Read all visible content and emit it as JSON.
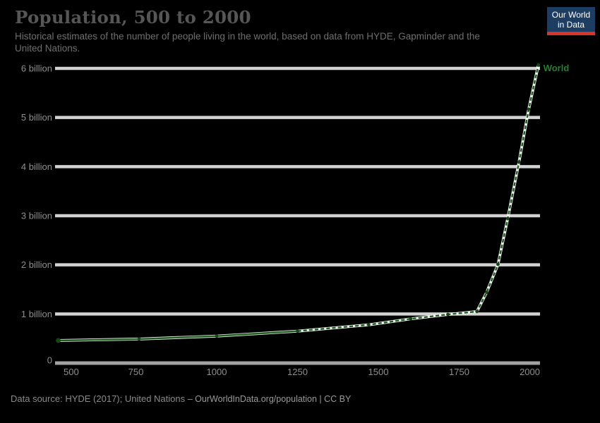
{
  "page": {
    "background": "#000000"
  },
  "header": {
    "title": "Population, 500 to 2000",
    "subtitle_lines": [
      "Historical estimates of the number of people living in the world, based on data from HYDE, Gapminder and the",
      "United Nations."
    ]
  },
  "logo": {
    "line1": "Our World",
    "line2": "in Data",
    "bg": "#1d3d63",
    "accent": "#d8352a"
  },
  "chart_data": {
    "type": "line",
    "title": "Population, 500 to 2000",
    "xlabel": "",
    "ylabel": "",
    "xlim": [
      500,
      2000
    ],
    "ylim": [
      0,
      6.3
    ],
    "grid": true,
    "grid_color": "#d2d2d2",
    "axis_color": "#a3a3a3",
    "tick_label_color": "#8f8f8f",
    "x_ticks": [
      {
        "value": 500,
        "label": "500"
      },
      {
        "value": 750,
        "label": "750"
      },
      {
        "value": 1000,
        "label": "1000"
      },
      {
        "value": 1250,
        "label": "1250"
      },
      {
        "value": 1500,
        "label": "1500"
      },
      {
        "value": 1750,
        "label": "1750"
      },
      {
        "value": 2000,
        "label": "2000"
      }
    ],
    "y_ticks": [
      {
        "value": 0,
        "label": "0"
      },
      {
        "value": 1,
        "label": "1 billion"
      },
      {
        "value": 2,
        "label": "2 billion"
      },
      {
        "value": 3,
        "label": "3 billion"
      },
      {
        "value": 4,
        "label": "4 billion"
      },
      {
        "value": 5,
        "label": "5 billion"
      },
      {
        "value": 6,
        "label": "6 billion"
      }
    ],
    "legend_position": "end-of-line",
    "series": [
      {
        "name": "World",
        "end_label": "World",
        "color": "#1e5b1e",
        "marker_color": "#174517",
        "halo_color": "#ffffff",
        "solid_until_year": 1250,
        "points": [
          [
            510,
            0.46
          ],
          [
            760,
            0.49
          ],
          [
            1000,
            0.55
          ],
          [
            1250,
            0.65
          ],
          [
            1470,
            0.78
          ],
          [
            1600,
            0.9
          ],
          [
            1715,
            0.99
          ],
          [
            1805,
            1.05
          ],
          [
            1835,
            1.44
          ],
          [
            1870,
            2.01
          ],
          [
            1900,
            2.94
          ],
          [
            1935,
            4.09
          ],
          [
            1965,
            5.17
          ],
          [
            1995,
            6.07
          ]
        ]
      }
    ]
  },
  "footer": {
    "source": "Data source: HYDE (2017); United Nations",
    "attribution": "– OurWorldInData.org/population | CC BY"
  }
}
